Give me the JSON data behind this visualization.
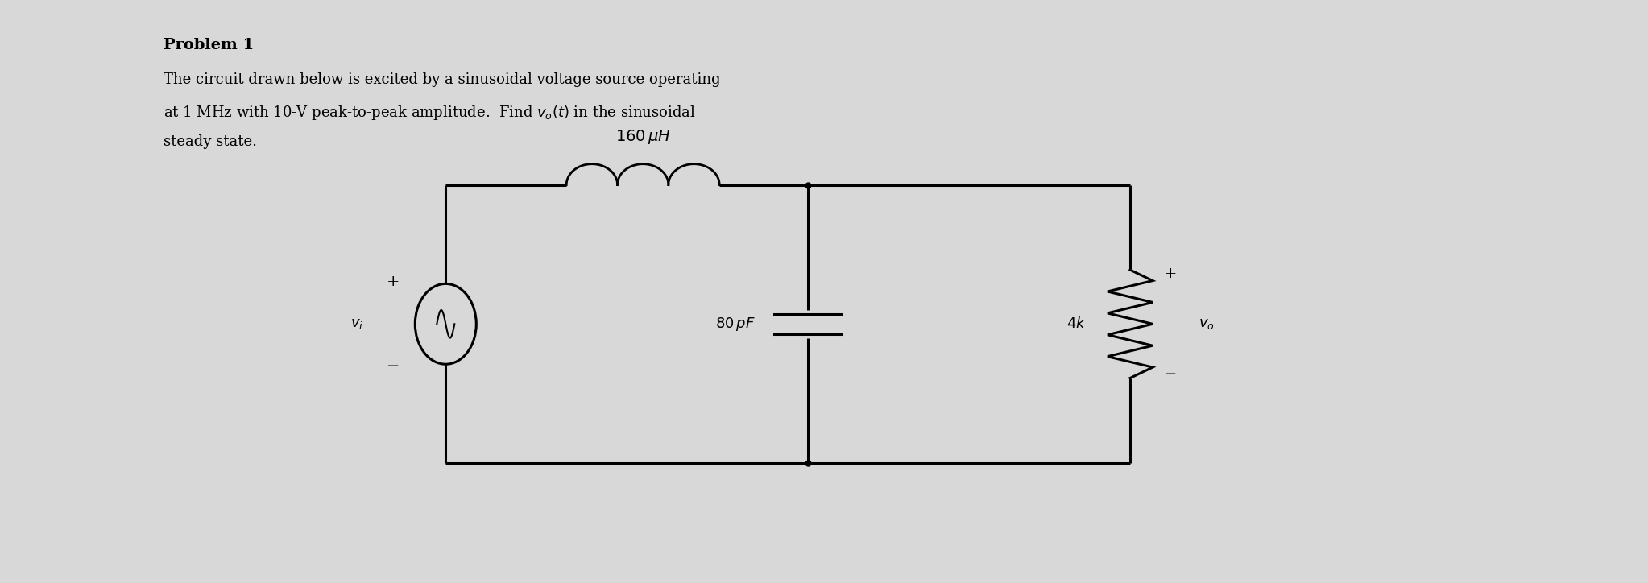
{
  "background_color": "#d8d8d8",
  "panel_color": "#ffffff",
  "title": "Problem 1",
  "body_text_line1": "The circuit drawn below is excited by a sinusoidal voltage source operating",
  "body_text_line2": "at 1 MHz with 10-V peak-to-peak amplitude.  Find $v_o(t)$ in the sinusoidal",
  "body_text_line3": "steady state.",
  "inductor_label": "160 μH",
  "capacitor_label": "80 pF",
  "resistor_label": "4k",
  "vs_label": "v_i",
  "vo_label": "v_o",
  "font_size_title": 14,
  "font_size_body": 13,
  "font_size_labels": 13
}
